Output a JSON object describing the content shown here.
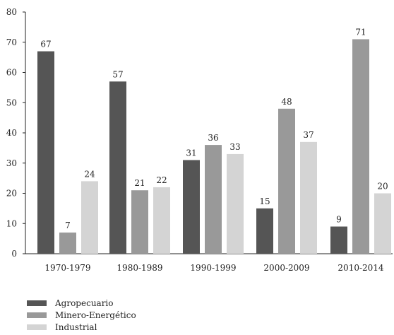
{
  "chart_data": {
    "type": "bar",
    "categories": [
      "1970-1979",
      "1980-1989",
      "1990-1999",
      "2000-2009",
      "2010-2014"
    ],
    "series": [
      {
        "name": "Agropecuario",
        "values": [
          67,
          57,
          31,
          15,
          9
        ],
        "color": "#555555"
      },
      {
        "name": "Minero-Energético",
        "values": [
          7,
          21,
          36,
          48,
          71
        ],
        "color": "#999999"
      },
      {
        "name": "Industrial",
        "values": [
          24,
          22,
          33,
          37,
          20
        ],
        "color": "#d4d4d4"
      }
    ],
    "ylim": [
      0,
      80
    ],
    "yticks": [
      0,
      10,
      20,
      30,
      40,
      50,
      60,
      70,
      80
    ],
    "grid": false,
    "legend_position": "bottom-left"
  }
}
